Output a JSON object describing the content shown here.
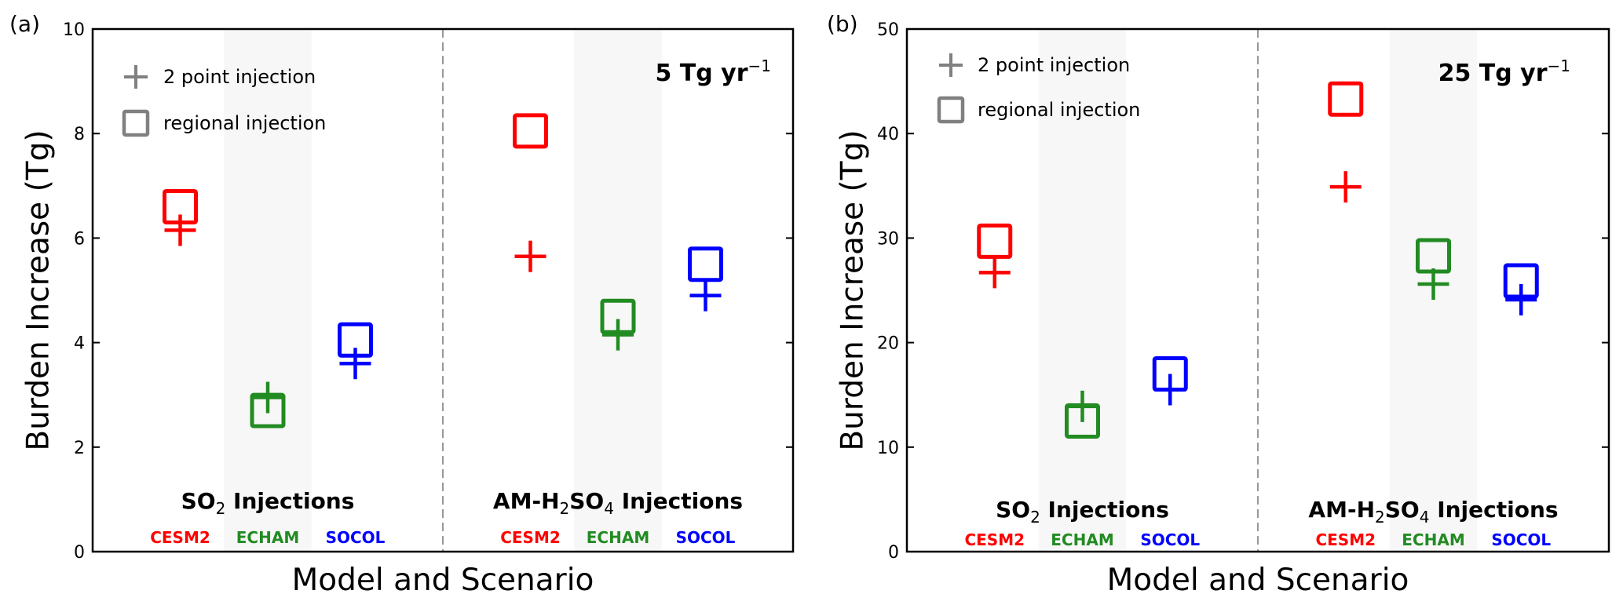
{
  "figure": {
    "colors": {
      "CESM2": "#ff0000",
      "ECHAM": "#228b22",
      "SOCOL": "#0000ff",
      "legend": "#808080",
      "band": "#f7f7f7",
      "divider": "#999999"
    }
  },
  "chart_data": [
    {
      "type": "scatter",
      "panel_tag": "(a)",
      "rate_label": {
        "value": "5 Tg yr",
        "superscript": "−1"
      },
      "xlabel": "Model and Scenario",
      "ylabel": "Burden Increase (Tg)",
      "ylim": [
        0,
        10
      ],
      "yticks": [
        0,
        2,
        4,
        6,
        8,
        10
      ],
      "ytick_labels": [
        "0",
        "2",
        "4",
        "6",
        "8",
        "10"
      ],
      "grid": false,
      "legend": {
        "placement": "top-left",
        "entries": [
          {
            "marker": "plus",
            "label": "2 point injection"
          },
          {
            "marker": "square",
            "label": "regional injection"
          }
        ]
      },
      "groups": [
        {
          "prefix": "SO",
          "subscript": "2",
          "mid": "",
          "sub2": "",
          "suffix": " Injections",
          "models": [
            "CESM2",
            "ECHAM",
            "SOCOL"
          ]
        },
        {
          "prefix": "AM-H",
          "subscript": "2",
          "mid": "SO",
          "sub2": "4",
          "suffix": " Injections",
          "models": [
            "CESM2",
            "ECHAM",
            "SOCOL"
          ]
        }
      ],
      "series": [
        {
          "name": "2 point injection",
          "marker": "plus",
          "points": [
            {
              "group": "SO2 Injections",
              "model": "CESM2",
              "value": 6.15
            },
            {
              "group": "SO2 Injections",
              "model": "ECHAM",
              "value": 2.95
            },
            {
              "group": "SO2 Injections",
              "model": "SOCOL",
              "value": 3.6
            },
            {
              "group": "AM-H2SO4 Injections",
              "model": "CESM2",
              "value": 5.65
            },
            {
              "group": "AM-H2SO4 Injections",
              "model": "ECHAM",
              "value": 4.15
            },
            {
              "group": "AM-H2SO4 Injections",
              "model": "SOCOL",
              "value": 4.9
            }
          ]
        },
        {
          "name": "regional injection",
          "marker": "square",
          "points": [
            {
              "group": "SO2 Injections",
              "model": "CESM2",
              "value": 6.6
            },
            {
              "group": "SO2 Injections",
              "model": "ECHAM",
              "value": 2.7
            },
            {
              "group": "SO2 Injections",
              "model": "SOCOL",
              "value": 4.05
            },
            {
              "group": "AM-H2SO4 Injections",
              "model": "CESM2",
              "value": 8.05
            },
            {
              "group": "AM-H2SO4 Injections",
              "model": "ECHAM",
              "value": 4.5
            },
            {
              "group": "AM-H2SO4 Injections",
              "model": "SOCOL",
              "value": 5.5
            }
          ]
        }
      ]
    },
    {
      "type": "scatter",
      "panel_tag": "(b)",
      "rate_label": {
        "value": "25 Tg yr",
        "superscript": "−1"
      },
      "xlabel": "Model and Scenario",
      "ylabel": "Burden Increase (Tg)",
      "ylim": [
        0,
        50
      ],
      "yticks": [
        0,
        10,
        20,
        30,
        40,
        50
      ],
      "ytick_labels": [
        "0",
        "10",
        "20",
        "30",
        "40",
        "50"
      ],
      "grid": false,
      "legend": {
        "placement": "top-left",
        "entries": [
          {
            "marker": "plus",
            "label": "2 point injection"
          },
          {
            "marker": "square",
            "label": "regional injection"
          }
        ]
      },
      "groups": [
        {
          "prefix": "SO",
          "subscript": "2",
          "mid": "",
          "sub2": "",
          "suffix": " Injections",
          "models": [
            "CESM2",
            "ECHAM",
            "SOCOL"
          ]
        },
        {
          "prefix": "AM-H",
          "subscript": "2",
          "mid": "SO",
          "sub2": "4",
          "suffix": " Injections",
          "models": [
            "CESM2",
            "ECHAM",
            "SOCOL"
          ]
        }
      ],
      "series": [
        {
          "name": "2 point injection",
          "marker": "plus",
          "points": [
            {
              "group": "SO2 Injections",
              "model": "CESM2",
              "value": 26.7
            },
            {
              "group": "SO2 Injections",
              "model": "ECHAM",
              "value": 13.9
            },
            {
              "group": "SO2 Injections",
              "model": "SOCOL",
              "value": 15.5
            },
            {
              "group": "AM-H2SO4 Injections",
              "model": "CESM2",
              "value": 34.9
            },
            {
              "group": "AM-H2SO4 Injections",
              "model": "ECHAM",
              "value": 25.6
            },
            {
              "group": "AM-H2SO4 Injections",
              "model": "SOCOL",
              "value": 24.1
            }
          ]
        },
        {
          "name": "regional injection",
          "marker": "square",
          "points": [
            {
              "group": "SO2 Injections",
              "model": "CESM2",
              "value": 29.7
            },
            {
              "group": "SO2 Injections",
              "model": "ECHAM",
              "value": 12.5
            },
            {
              "group": "SO2 Injections",
              "model": "SOCOL",
              "value": 17.0
            },
            {
              "group": "AM-H2SO4 Injections",
              "model": "CESM2",
              "value": 43.3
            },
            {
              "group": "AM-H2SO4 Injections",
              "model": "ECHAM",
              "value": 28.3
            },
            {
              "group": "AM-H2SO4 Injections",
              "model": "SOCOL",
              "value": 25.9
            }
          ]
        }
      ]
    }
  ]
}
